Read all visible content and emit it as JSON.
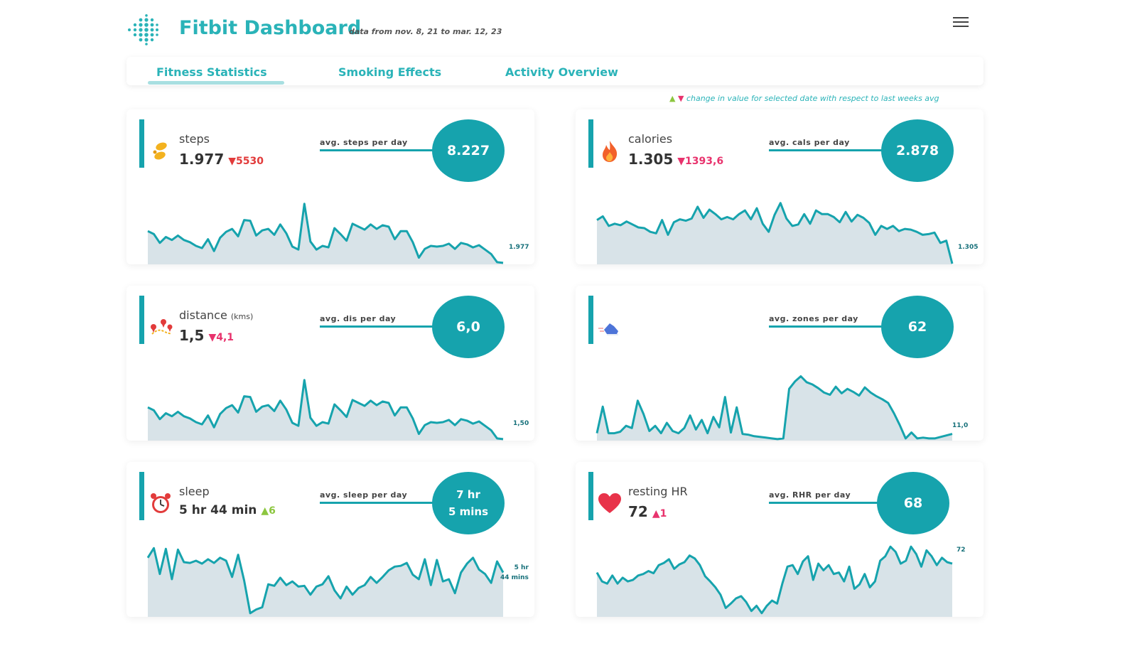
{
  "header": {
    "title": "Fitbit Dashboard",
    "subtitle": "data from nov. 8, 21 to  mar. 12, 23"
  },
  "tabs": [
    {
      "label": "Fitness Statistics"
    },
    {
      "label": "Smoking Effects"
    },
    {
      "label": "Activity Overview"
    }
  ],
  "legend_note": {
    "up_symbol": "▲",
    "down_symbol": "▼",
    "text": "change in value for selected date with respect to last weeks avg"
  },
  "colors": {
    "accent": "#16a3ad",
    "title": "#2ab3b8",
    "fill": "#d8e3e8",
    "down": "#e8336d",
    "up": "#8cc63f"
  },
  "cards": {
    "steps": {
      "label": "steps",
      "unit": "",
      "value": "1.977",
      "delta": "▼5530",
      "avg_label": "avg. steps per day",
      "avg_value": "8.227",
      "last_label": "1.977",
      "icon": "footsteps-icon"
    },
    "calories": {
      "label": "calories",
      "unit": "",
      "value": "1.305",
      "delta": "▼1393,6",
      "avg_label": "avg. cals per day",
      "avg_value": "2.878",
      "last_label": "1.305",
      "icon": "flame-icon"
    },
    "distance": {
      "label": "distance",
      "unit": "(kms)",
      "value": "1,5",
      "delta": "▼4,1",
      "avg_label": "avg. dis per day",
      "avg_value": "6,0",
      "last_label": "1,50",
      "icon": "map-pins-icon"
    },
    "zones": {
      "label": "",
      "unit": "",
      "value": "",
      "delta": "",
      "avg_label": "avg. zones per day",
      "avg_value": "62",
      "last_label": "11,0",
      "icon": "running-shoe-icon"
    },
    "sleep": {
      "label": "sleep",
      "unit": "",
      "value": "5 hr 44 min",
      "delta": "▲6",
      "avg_label": "avg. sleep per day",
      "avg_value_line1": "7 hr",
      "avg_value_line2": "5 mins",
      "last_label_line1": "5 hr",
      "last_label_line2": "44 mins",
      "icon": "alarm-clock-icon"
    },
    "rhr": {
      "label": "resting HR",
      "unit": "",
      "value": "72",
      "delta": "▲1",
      "avg_label": "avg. RHR per day",
      "avg_value": "68",
      "last_label": "72",
      "icon": "heart-icon"
    }
  },
  "chart_data": [
    {
      "type": "area",
      "name": "steps",
      "values": [
        45,
        41,
        29,
        37,
        33,
        39,
        33,
        30,
        25,
        22,
        34,
        18,
        36,
        44,
        48,
        38,
        60,
        59,
        39,
        46,
        48,
        40,
        54,
        42,
        24,
        20,
        82,
        31,
        20,
        25,
        23,
        49,
        41,
        32,
        55,
        51,
        47,
        54,
        48,
        53,
        51,
        34,
        45,
        45,
        30,
        9,
        21,
        25,
        24,
        25,
        28,
        21,
        29,
        27,
        23,
        26,
        20,
        14,
        3,
        2
      ],
      "last_label": "1.977"
    },
    {
      "type": "area",
      "name": "calories",
      "values": [
        60,
        65,
        52,
        55,
        53,
        58,
        54,
        50,
        49,
        44,
        42,
        60,
        40,
        57,
        61,
        59,
        62,
        78,
        63,
        74,
        68,
        61,
        64,
        61,
        68,
        73,
        61,
        76,
        55,
        44,
        67,
        83,
        62,
        52,
        54,
        68,
        55,
        73,
        68,
        68,
        64,
        57,
        71,
        58,
        67,
        63,
        56,
        40,
        52,
        48,
        52,
        45,
        48,
        47,
        44,
        40,
        41,
        43,
        29,
        32,
        1
      ],
      "last_label": "1.305"
    },
    {
      "type": "area",
      "name": "distance",
      "values": [
        45,
        41,
        29,
        37,
        33,
        39,
        33,
        30,
        25,
        22,
        34,
        18,
        36,
        44,
        48,
        38,
        60,
        59,
        39,
        46,
        48,
        40,
        54,
        42,
        24,
        20,
        82,
        31,
        20,
        25,
        23,
        49,
        41,
        32,
        55,
        51,
        47,
        54,
        48,
        53,
        51,
        34,
        45,
        45,
        30,
        9,
        21,
        25,
        24,
        25,
        28,
        21,
        29,
        27,
        23,
        26,
        20,
        14,
        3,
        2
      ],
      "last_label": "1,50"
    },
    {
      "type": "area",
      "name": "zones",
      "values": [
        10,
        46,
        10,
        10,
        12,
        20,
        17,
        54,
        36,
        13,
        20,
        10,
        24,
        13,
        10,
        17,
        34,
        15,
        28,
        10,
        32,
        18,
        59,
        11,
        45,
        9,
        8,
        6,
        5,
        4,
        3,
        2,
        3,
        70,
        80,
        87,
        79,
        76,
        71,
        65,
        62,
        73,
        64,
        70,
        66,
        61,
        72,
        65,
        60,
        56,
        51,
        37,
        21,
        3,
        11,
        3,
        4,
        3,
        3,
        5,
        7,
        9
      ],
      "last_label": "11,0"
    },
    {
      "type": "line",
      "name": "sleep",
      "values": [
        80,
        93,
        58,
        92,
        51,
        91,
        74,
        73,
        76,
        72,
        78,
        73,
        80,
        76,
        54,
        84,
        49,
        5,
        10,
        13,
        44,
        42,
        53,
        43,
        48,
        41,
        42,
        30,
        41,
        44,
        55,
        36,
        25,
        41,
        30,
        39,
        43,
        54,
        46,
        54,
        63,
        68,
        69,
        73,
        57,
        51,
        78,
        43,
        77,
        48,
        51,
        32,
        60,
        72,
        80,
        64,
        58,
        46,
        75,
        60
      ],
      "last_label": "5 hr 44 mins"
    },
    {
      "type": "area",
      "name": "resting HR",
      "values": [
        60,
        48,
        45,
        56,
        45,
        53,
        48,
        50,
        56,
        58,
        62,
        59,
        70,
        73,
        78,
        65,
        71,
        74,
        83,
        79,
        70,
        55,
        48,
        40,
        30,
        12,
        18,
        25,
        28,
        20,
        8,
        15,
        5,
        15,
        22,
        18,
        45,
        68,
        70,
        58,
        75,
        82,
        50,
        72,
        63,
        70,
        58,
        60,
        48,
        68,
        38,
        44,
        58,
        40,
        48,
        76,
        82,
        95,
        88,
        72,
        76,
        95,
        85,
        68,
        90,
        82,
        70,
        80,
        74,
        72
      ],
      "last_label": "72"
    }
  ]
}
